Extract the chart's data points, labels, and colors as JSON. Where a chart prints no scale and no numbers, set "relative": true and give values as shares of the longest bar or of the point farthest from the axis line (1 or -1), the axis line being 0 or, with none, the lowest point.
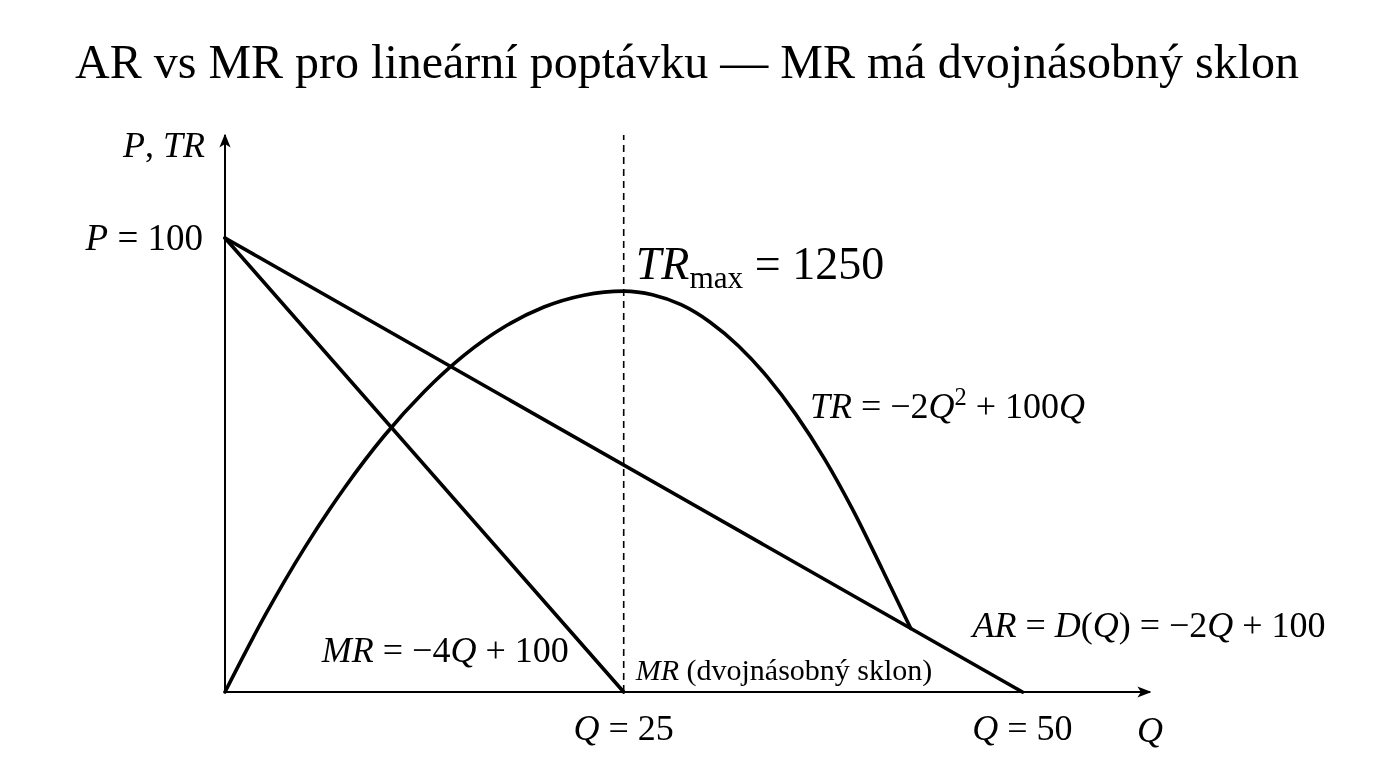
{
  "chart_data": {
    "type": "line",
    "relative": true,
    "title": "AR vs MR pro lineární poptávku — MR má dvojnásobný sklon",
    "xlabel": "Q",
    "ylabel": "P, TR",
    "xlim": [
      0,
      58
    ],
    "xticks": [
      {
        "value": 25,
        "label": "Q = 25"
      },
      {
        "value": 50,
        "label": "Q = 50"
      }
    ],
    "series": [
      {
        "name": "AR = D(Q) = −2Q + 100",
        "color": "#000000",
        "x": [
          0,
          50
        ],
        "values": [
          1,
          0
        ]
      },
      {
        "name": "MR = −4Q + 100",
        "color": "#000000",
        "x": [
          0,
          25
        ],
        "values": [
          1,
          0
        ]
      },
      {
        "name": "TR = −2Q$^{2}$ + 100Q",
        "color": "#000000",
        "x": [
          0,
          2.5,
          5,
          7.5,
          10,
          12.5,
          15,
          17.5,
          20,
          22.5,
          25,
          26.8,
          28.6,
          30.4,
          32.2,
          34,
          35.8,
          37.6,
          39.4,
          41.2,
          43
        ],
        "values": [
          0,
          0.168,
          0.318,
          0.45,
          0.565,
          0.662,
          0.742,
          0.804,
          0.848,
          0.874,
          0.883,
          0.875,
          0.853,
          0.815,
          0.762,
          0.694,
          0.611,
          0.513,
          0.399,
          0.271,
          0.14
        ]
      }
    ],
    "ref_lines": [
      {
        "axis": "x",
        "value": 25,
        "color": "#000000",
        "line_style": "dashed"
      }
    ],
    "annotations": [
      "P = 100",
      {
        "text": "TR$_{max}$ = 1250",
        "x": 25,
        "y": 0.883
      },
      {
        "text": "MR (dvojnásobný sklon)",
        "x": 25
      }
    ]
  }
}
